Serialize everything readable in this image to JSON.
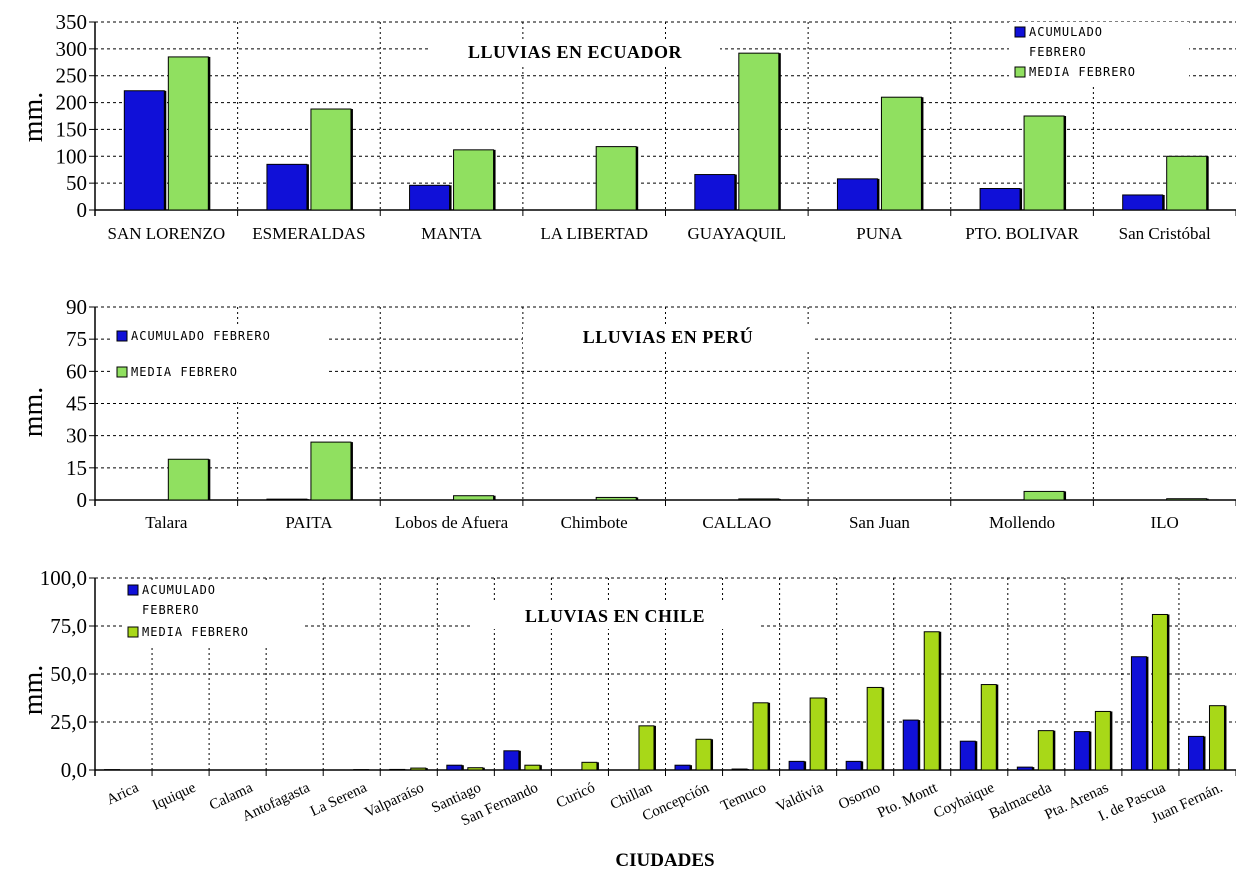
{
  "colors": {
    "acumulado": "#1010d8",
    "media_ecuador": "#90e060",
    "media_peru": "#90e060",
    "media_chile": "#a8d818"
  },
  "chart_data": [
    {
      "type": "bar",
      "title": "LLUVIAS EN ECUADOR",
      "ylabel": "mm.",
      "xlabel": "",
      "ylim": [
        0,
        350
      ],
      "yticks": [
        "0",
        "50",
        "100",
        "150",
        "200",
        "250",
        "300",
        "350"
      ],
      "ytick_values": [
        0,
        50,
        100,
        150,
        200,
        250,
        300,
        350
      ],
      "grid": true,
      "legend_position": "top-right",
      "categories": [
        "SAN LORENZO",
        "ESMERALDAS",
        "MANTA",
        "LA LIBERTAD",
        "GUAYAQUIL",
        "PUNA",
        "PTO. BOLIVAR",
        "San Cristóbal"
      ],
      "series": [
        {
          "name": "ACUMULADO FEBRERO",
          "legend_lines": [
            "ACUMULADO",
            "FEBRERO"
          ],
          "values": [
            222,
            85,
            46,
            0,
            66,
            58,
            40,
            28
          ]
        },
        {
          "name": "MEDIA FEBRERO",
          "legend_lines": [
            "MEDIA FEBRERO"
          ],
          "values": [
            285,
            188,
            112,
            118,
            292,
            210,
            175,
            100
          ]
        }
      ]
    },
    {
      "type": "bar",
      "title": "LLUVIAS EN PERÚ",
      "ylabel": "mm.",
      "xlabel": "",
      "ylim": [
        0,
        90
      ],
      "yticks": [
        "0",
        "15",
        "30",
        "45",
        "60",
        "75",
        "90"
      ],
      "ytick_values": [
        0,
        15,
        30,
        45,
        60,
        75,
        90
      ],
      "grid": true,
      "legend_position": "top-left",
      "categories": [
        "Talara",
        "PAITA",
        "Lobos de Afuera",
        "Chimbote",
        "CALLAO",
        "San Juan",
        "Mollendo",
        "ILO"
      ],
      "series": [
        {
          "name": "ACUMULADO FEBRERO",
          "legend_lines": [
            "ACUMULADO FEBRERO"
          ],
          "values": [
            0,
            0.4,
            0,
            0,
            0,
            0,
            0,
            0
          ]
        },
        {
          "name": "MEDIA FEBRERO",
          "legend_lines": [
            "MEDIA FEBRERO"
          ],
          "values": [
            19,
            27,
            2,
            1.2,
            0.5,
            0,
            4,
            0.6
          ]
        }
      ]
    },
    {
      "type": "bar",
      "title": "LLUVIAS EN CHILE",
      "ylabel": "mm.",
      "xlabel": "CIUDADES",
      "ylim": [
        0,
        100
      ],
      "yticks": [
        "0,0",
        "25,0",
        "50,0",
        "75,0",
        "100,0"
      ],
      "ytick_values": [
        0,
        25,
        50,
        75,
        100
      ],
      "grid": true,
      "legend_position": "top-left",
      "categories": [
        "Arica",
        "Iquique",
        "Calama",
        "Antofagasta",
        "La Serena",
        "Valparaíso",
        "Santiago",
        "San Fernando",
        "Curicó",
        "Chillan",
        "Concepción",
        "Temuco",
        "Valdivia",
        "Osorno",
        "Pto. Montt",
        "Coyhaique",
        "Balmaceda",
        "Pta. Arenas",
        "I. de Pascua",
        "Juan Fernán."
      ],
      "series": [
        {
          "name": "ACUMULADO FEBRERO",
          "legend_lines": [
            "ACUMULADO",
            "FEBRERO"
          ],
          "values": [
            0.2,
            0,
            0,
            0,
            0,
            0.3,
            2.5,
            10,
            0,
            0,
            2.5,
            0.5,
            4.5,
            4.5,
            26,
            15,
            1.5,
            20,
            59,
            17.5
          ]
        },
        {
          "name": "MEDIA FEBRERO",
          "legend_lines": [
            "MEDIA FEBRERO"
          ],
          "values": [
            0,
            0,
            0,
            0,
            0.2,
            1,
            1.2,
            2.5,
            4,
            23,
            16,
            35,
            37.5,
            43,
            72,
            44.5,
            20.5,
            30.5,
            81,
            33.5
          ]
        }
      ]
    }
  ]
}
